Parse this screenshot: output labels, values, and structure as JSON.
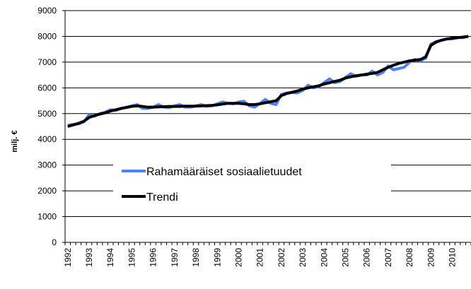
{
  "chart_data": {
    "type": "line",
    "y_label": "milj. €",
    "categories": [
      "1992",
      null,
      null,
      null,
      "1993",
      null,
      null,
      null,
      "1994",
      null,
      null,
      null,
      "1995",
      null,
      null,
      null,
      "1996",
      null,
      null,
      null,
      "1997",
      null,
      null,
      null,
      "1998",
      null,
      null,
      null,
      "1999",
      null,
      null,
      null,
      "2000",
      null,
      null,
      null,
      "2001",
      null,
      null,
      null,
      "2002",
      null,
      null,
      null,
      "2003",
      null,
      null,
      null,
      "2004",
      null,
      null,
      null,
      "2005",
      null,
      null,
      null,
      "2006",
      null,
      null,
      null,
      "2007",
      null,
      null,
      null,
      "2008",
      null,
      null,
      null,
      "2009",
      null,
      null,
      null,
      "2010",
      null,
      null,
      null
    ],
    "series": [
      {
        "name": "Rahamääräiset sosiaalietuudet",
        "color": "#4f81f0",
        "width": 4,
        "values": [
          4550,
          4580,
          4600,
          4680,
          4950,
          4900,
          5000,
          5050,
          5150,
          5120,
          5200,
          5250,
          5300,
          5350,
          5200,
          5200,
          5250,
          5350,
          5250,
          5230,
          5300,
          5350,
          5250,
          5250,
          5300,
          5350,
          5280,
          5300,
          5380,
          5450,
          5400,
          5380,
          5450,
          5480,
          5300,
          5250,
          5400,
          5550,
          5400,
          5350,
          5750,
          5800,
          5820,
          5800,
          5900,
          6100,
          6000,
          6050,
          6200,
          6350,
          6200,
          6250,
          6400,
          6550,
          6450,
          6500,
          6500,
          6650,
          6500,
          6600,
          6850,
          6700,
          6750,
          6800,
          7000,
          7100,
          7050,
          7150,
          7700,
          7800,
          7850,
          7900,
          7900,
          7950,
          7950,
          8000
        ]
      },
      {
        "name": "Trendi",
        "color": "#000000",
        "width": 4,
        "values": [
          4500,
          4560,
          4620,
          4700,
          4850,
          4920,
          4980,
          5030,
          5100,
          5150,
          5200,
          5240,
          5280,
          5300,
          5280,
          5250,
          5250,
          5260,
          5270,
          5280,
          5280,
          5280,
          5290,
          5290,
          5290,
          5300,
          5310,
          5320,
          5340,
          5370,
          5400,
          5400,
          5400,
          5380,
          5350,
          5350,
          5380,
          5420,
          5460,
          5500,
          5700,
          5780,
          5830,
          5880,
          5950,
          6000,
          6040,
          6080,
          6150,
          6200,
          6250,
          6300,
          6380,
          6430,
          6470,
          6500,
          6530,
          6560,
          6600,
          6700,
          6800,
          6880,
          6950,
          7000,
          7050,
          7080,
          7100,
          7200,
          7650,
          7780,
          7850,
          7900,
          7930,
          7950,
          7970,
          8000
        ]
      }
    ],
    "ylim": [
      0,
      9000
    ],
    "yticks": [
      0,
      1000,
      2000,
      3000,
      4000,
      5000,
      6000,
      7000,
      8000,
      9000
    ],
    "grid": true
  }
}
